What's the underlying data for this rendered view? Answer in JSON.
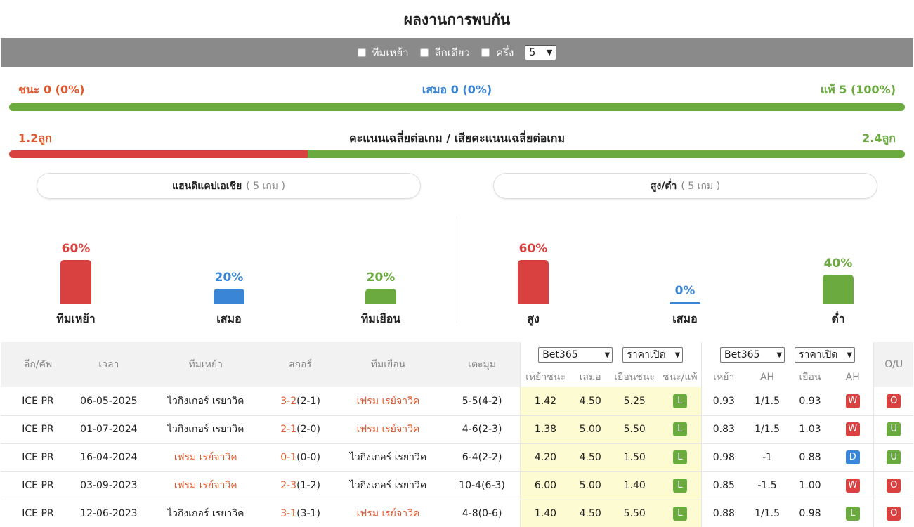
{
  "page_title": "ผลงานการพบกัน",
  "filters": {
    "home_label": "ทีมเหย้า",
    "league_label": "ลีกเดียว",
    "half_label": "ครึ่ง",
    "count_value": "5"
  },
  "summary": {
    "win": "ชนะ 0 (0%)",
    "draw": "เสมอ 0 (0%)",
    "loss": "แพ้ 5 (100%)",
    "win_pct": 0,
    "draw_pct": 0,
    "loss_pct": 100
  },
  "avg": {
    "left": "1.2ลูก",
    "center": "คะแนนเฉลี่ยต่อเกม / เสียคะแนนเฉลี่ยต่อเกม",
    "right": "2.4ลูก",
    "left_fraction": 0.333
  },
  "handicap": {
    "title": "แฮนดิแคปเอเชีย",
    "games": "( 5 เกม )",
    "items": [
      {
        "pct": "60%",
        "value": 60,
        "label": "ทีมเหย้า",
        "color": "#d94040"
      },
      {
        "pct": "20%",
        "value": 20,
        "label": "เสมอ",
        "color": "#3a85d6"
      },
      {
        "pct": "20%",
        "value": 20,
        "label": "ทีมเยือน",
        "color": "#6aaa3f"
      }
    ]
  },
  "overunder": {
    "title": "สูง/ต่ำ",
    "games": "( 5 เกม )",
    "items": [
      {
        "pct": "60%",
        "value": 60,
        "label": "สูง",
        "color": "#d94040"
      },
      {
        "pct": "0%",
        "value": 0,
        "label": "เสมอ",
        "color": "#3a85d6"
      },
      {
        "pct": "40%",
        "value": 40,
        "label": "ต่ำ",
        "color": "#6aaa3f"
      }
    ]
  },
  "colors": {
    "red": "#d94040",
    "blue": "#3a85d6",
    "green": "#6aaa3f",
    "orange": "#e0592e"
  },
  "table": {
    "headers": {
      "league": "ลีก/คัพ",
      "time": "เวลา",
      "home": "ทีมเหย้า",
      "score": "สกอร์",
      "away": "ทีมเยือน",
      "corner": "เตะมุม",
      "ou": "O/U"
    },
    "bookmaker1": "Bet365",
    "odds_type1": "ราคาเปิด",
    "bookmaker2": "Bet365",
    "odds_type2": "ราคาเปิด",
    "sub1": [
      "เหย้าชนะ",
      "เสมอ",
      "เยือนชนะ",
      "ชนะ/แพ้"
    ],
    "sub2": [
      "เหย้า",
      "AH",
      "เยือน",
      "AH"
    ],
    "rows": [
      {
        "league": "ICE PR",
        "date": "06-05-2025",
        "home": "ไวกิงเกอร์ เรยาวิค",
        "home_hl": false,
        "score_ft": "3-2",
        "score_ht": "(2-1)",
        "away": "เฟรม เรย์จาวิค",
        "away_hl": true,
        "corner": "5-5(4-2)",
        "o1": "1.42",
        "o2": "4.50",
        "o3": "5.25",
        "wl": "L",
        "a1": "0.93",
        "ah": "1/1.5",
        "a2": "0.93",
        "ahr": "W",
        "ou": "O"
      },
      {
        "league": "ICE PR",
        "date": "01-07-2024",
        "home": "ไวกิงเกอร์ เรยาวิค",
        "home_hl": false,
        "score_ft": "2-1",
        "score_ht": "(2-0)",
        "away": "เฟรม เรย์จาวิค",
        "away_hl": true,
        "corner": "4-6(2-3)",
        "o1": "1.38",
        "o2": "5.00",
        "o3": "5.50",
        "wl": "L",
        "a1": "0.83",
        "ah": "1/1.5",
        "a2": "1.03",
        "ahr": "W",
        "ou": "U"
      },
      {
        "league": "ICE PR",
        "date": "16-04-2024",
        "home": "เฟรม เรย์จาวิค",
        "home_hl": true,
        "score_ft": "0-1",
        "score_ht": "(0-0)",
        "away": "ไวกิงเกอร์ เรยาวิค",
        "away_hl": false,
        "corner": "6-4(2-2)",
        "o1": "4.20",
        "o2": "4.50",
        "o3": "1.50",
        "wl": "L",
        "a1": "0.98",
        "ah": "-1",
        "a2": "0.88",
        "ahr": "D",
        "ou": "U"
      },
      {
        "league": "ICE PR",
        "date": "03-09-2023",
        "home": "เฟรม เรย์จาวิค",
        "home_hl": true,
        "score_ft": "2-3",
        "score_ht": "(1-2)",
        "away": "ไวกิงเกอร์ เรยาวิค",
        "away_hl": false,
        "corner": "10-4(6-3)",
        "o1": "6.00",
        "o2": "5.00",
        "o3": "1.40",
        "wl": "L",
        "a1": "0.85",
        "ah": "-1.5",
        "a2": "1.00",
        "ahr": "W",
        "ou": "O"
      },
      {
        "league": "ICE PR",
        "date": "12-06-2023",
        "home": "ไวกิงเกอร์ เรยาวิค",
        "home_hl": false,
        "score_ft": "3-1",
        "score_ht": "(3-1)",
        "away": "เฟรม เรย์จาวิค",
        "away_hl": true,
        "corner": "4-8(0-6)",
        "o1": "1.40",
        "o2": "4.50",
        "o3": "5.50",
        "wl": "L",
        "a1": "0.88",
        "ah": "1/1.5",
        "a2": "0.98",
        "ahr": "L",
        "ou": "O"
      }
    ]
  }
}
